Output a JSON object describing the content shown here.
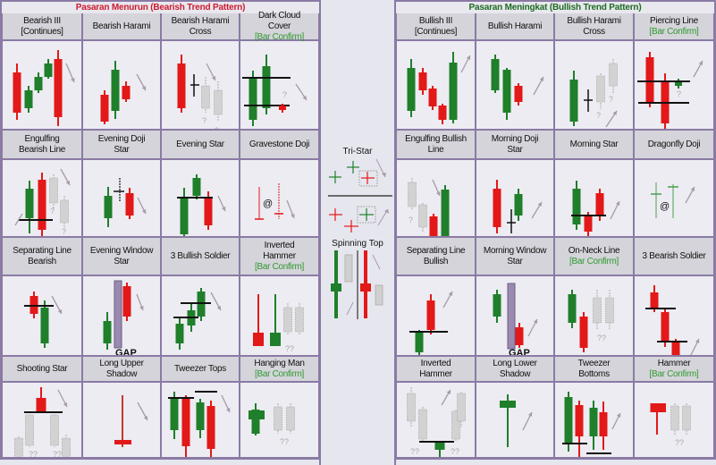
{
  "colors": {
    "bull": "#1f7f2a",
    "bear": "#e31818",
    "grid": "#8a7aa4",
    "bearish_title": "#cc1b30",
    "bullish_title": "#1c6b22",
    "confirm": "#2f9a2f",
    "ghost": "#c8c8c8",
    "arrow": "#a89aa8"
  },
  "bearish": {
    "title": "Pasaran Menurun (Bearish Trend Pattern)",
    "rows": [
      [
        {
          "l1": "Bearish III",
          "l2": "[Continues]"
        },
        {
          "l1": "Bearish Harami"
        },
        {
          "l1": "Bearish Harami",
          "l2": "Cross"
        },
        {
          "l1": "Dark Cloud",
          "l2": "Cover",
          "confirm": "[Bar Confirm]"
        }
      ],
      [
        {
          "l1": "Engulfing",
          "l2": "Bearish Line"
        },
        {
          "l1": "Evening Doji",
          "l2": "Star"
        },
        {
          "l1": "Evening Star"
        },
        {
          "l1": "Gravestone Doji"
        }
      ],
      [
        {
          "l1": "Separating Line",
          "l2": "Bearish"
        },
        {
          "l1": "Evening Window",
          "l2": "Star"
        },
        {
          "l1": "3 Bullish Soldier"
        },
        {
          "l1": "Inverted",
          "l2": "Hammer",
          "confirm": "[Bar Confirm]"
        }
      ],
      [
        {
          "l1": "Shooting Star"
        },
        {
          "l1": "Long Upper",
          "l2": "Shadow"
        },
        {
          "l1": "Tweezer Tops"
        },
        {
          "l1": "Hanging Man",
          "confirm": "[Bar Confirm]"
        }
      ]
    ]
  },
  "bullish": {
    "title": "Pasaran Meningkat (Bullish Trend Pattern)",
    "rows": [
      [
        {
          "l1": "Bullish III",
          "l2": "[Continues]"
        },
        {
          "l1": "Bullish Harami"
        },
        {
          "l1": "Bullish Harami",
          "l2": "Cross"
        },
        {
          "l1": "Piercing Line",
          "confirm": "[Bar Confirm]"
        }
      ],
      [
        {
          "l1": "Engulfing Bullish",
          "l2": "Line"
        },
        {
          "l1": "Morning Doji",
          "l2": "Star"
        },
        {
          "l1": "Morning Star"
        },
        {
          "l1": "Dragonfly Doji"
        }
      ],
      [
        {
          "l1": "Separating Line",
          "l2": "Bullish"
        },
        {
          "l1": "Morning Window",
          "l2": "Star"
        },
        {
          "l1": "On-Neck Line",
          "confirm": "[Bar Confirm]"
        },
        {
          "l1": "3 Bearish Soldier"
        }
      ],
      [
        {
          "l1": "Inverted",
          "l2": "Hammer"
        },
        {
          "l1": "Long Lower",
          "l2": "Shadow"
        },
        {
          "l1": "Tweezer",
          "l2": "Bottoms"
        },
        {
          "l1": "Hammer",
          "confirm": "[Bar Confirm]"
        }
      ]
    ]
  },
  "center": {
    "tri_star": "Tri-Star",
    "spinning_top": "Spinning Top"
  },
  "labels": {
    "gap": "GAP",
    "at": "@",
    "q": "?",
    "qq": "??"
  }
}
